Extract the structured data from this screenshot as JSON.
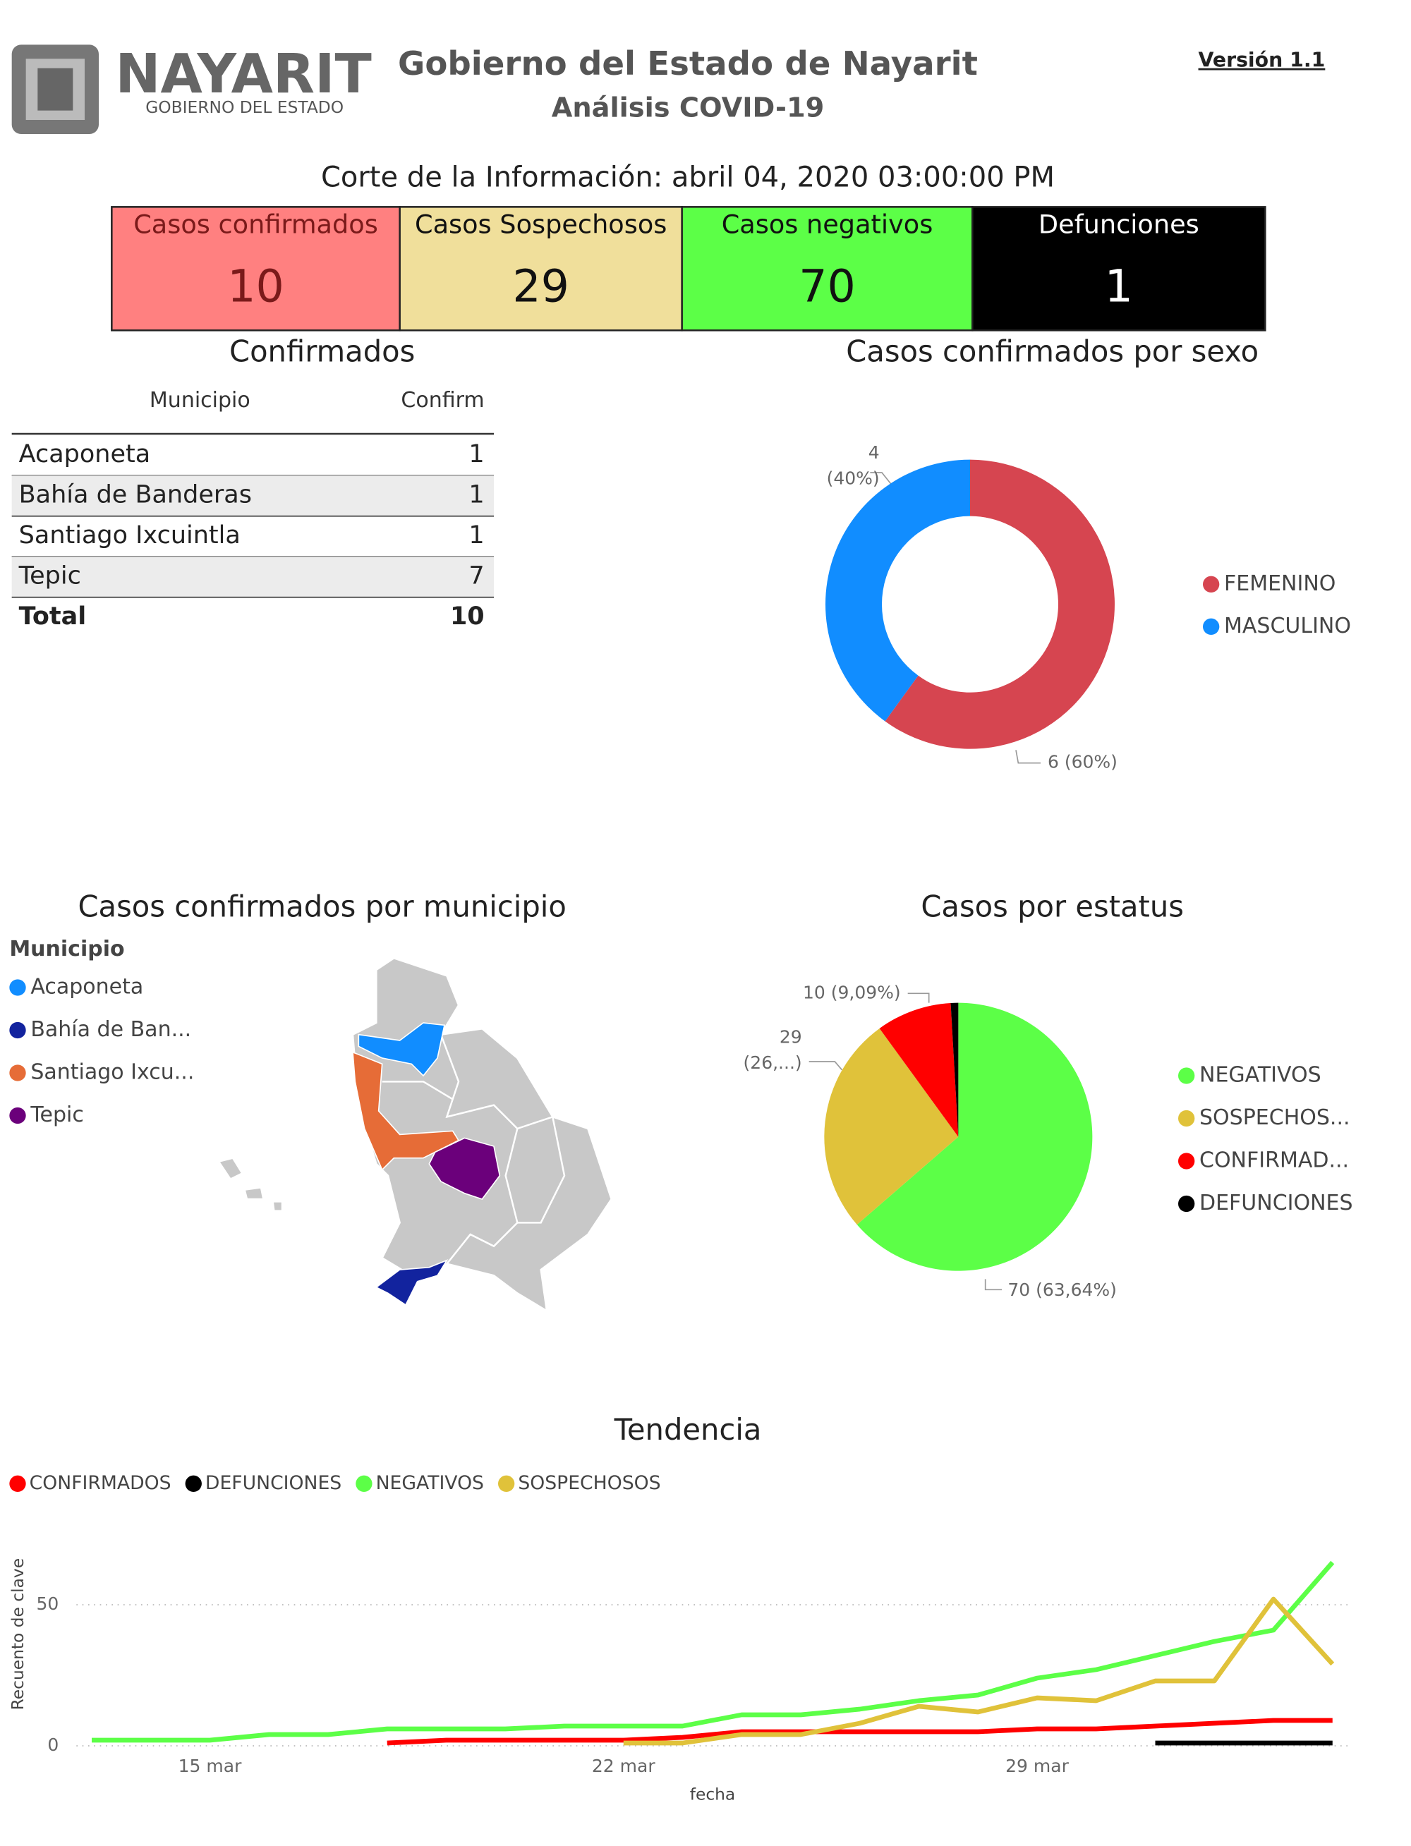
{
  "header": {
    "logo_text": "NAYARIT",
    "logo_sub": "GOBIERNO DEL ESTADO",
    "title": "Gobierno del Estado de Nayarit",
    "subtitle": "Análisis COVID-19",
    "version": "Versión 1.1",
    "corte": "Corte de la Información: abril 04, 2020 03:00:00 PM"
  },
  "cards": [
    {
      "label": "Casos confirmados",
      "value": 10,
      "bg": "#ff8080",
      "color": "#7a1a1a"
    },
    {
      "label": "Casos Sospechosos",
      "value": 29,
      "bg": "#f0df9b",
      "color": "#111111"
    },
    {
      "label": "Casos negativos",
      "value": 70,
      "bg": "#5cff47",
      "color": "#111111"
    },
    {
      "label": "Defunciones",
      "value": 1,
      "bg": "#000000",
      "color": "#ffffff"
    }
  ],
  "table": {
    "title": "Confirmados",
    "columns": [
      "Municipio",
      "Confirm"
    ],
    "rows": [
      [
        "Acaponeta",
        1
      ],
      [
        "Bahía de Banderas",
        1
      ],
      [
        "Santiago Ixcuintla",
        1
      ],
      [
        "Tepic",
        7
      ]
    ],
    "total": [
      "Total",
      10
    ]
  },
  "map": {
    "title": "Casos confirmados por municipio",
    "legend_title": "Municipio",
    "items": [
      {
        "name": "Acaponeta",
        "color": "#118dff"
      },
      {
        "name": "Bahía de Ban...",
        "color": "#12239e"
      },
      {
        "name": "Santiago Ixcu...",
        "color": "#e66c37"
      },
      {
        "name": "Tepic",
        "color": "#6b007b"
      }
    ]
  },
  "chart_data": [
    {
      "type": "donut",
      "title": "Casos confirmados por sexo",
      "categories": [
        "FEMENINO",
        "MASCULINO"
      ],
      "values": [
        6,
        4
      ],
      "value_labels": [
        "6 (60%)",
        "4 (40%)"
      ],
      "colors": [
        "#d64550",
        "#118dff"
      ]
    },
    {
      "type": "pie",
      "title": "Casos por estatus",
      "categories": [
        "NEGATIVOS",
        "SOSPECHOS...",
        "CONFIRMAD...",
        "DEFUNCIONES"
      ],
      "values": [
        70,
        29,
        10,
        1
      ],
      "value_labels": [
        "70 (63,64%)",
        "29 (26,...)",
        "10 (9,09%)",
        null
      ],
      "colors": [
        "#5cff47",
        "#e0c23a",
        "#ff0000",
        "#000000"
      ]
    },
    {
      "type": "line",
      "title": "Tendencia",
      "xlabel": "fecha",
      "ylabel": "Recuento de clave",
      "x": [
        "13 mar",
        "14 mar",
        "15 mar",
        "16 mar",
        "17 mar",
        "18 mar",
        "19 mar",
        "20 mar",
        "21 mar",
        "22 mar",
        "23 mar",
        "24 mar",
        "25 mar",
        "26 mar",
        "27 mar",
        "28 mar",
        "29 mar",
        "30 mar",
        "31 mar",
        "1 abr",
        "2 abr",
        "3 abr"
      ],
      "xticks": [
        "15 mar",
        "22 mar",
        "29 mar"
      ],
      "ylim": [
        0,
        70
      ],
      "yticks": [
        0,
        50
      ],
      "grid": true,
      "series": [
        {
          "name": "CONFIRMADOS",
          "color": "#ff0000",
          "values": [
            null,
            null,
            null,
            null,
            null,
            1,
            2,
            2,
            2,
            2,
            3,
            5,
            5,
            5,
            5,
            5,
            6,
            6,
            7,
            8,
            9,
            9
          ]
        },
        {
          "name": "DEFUNCIONES",
          "color": "#000000",
          "values": [
            null,
            null,
            null,
            null,
            null,
            null,
            null,
            null,
            null,
            null,
            null,
            null,
            null,
            null,
            null,
            null,
            null,
            null,
            1,
            1,
            1,
            1
          ]
        },
        {
          "name": "NEGATIVOS",
          "color": "#5cff47",
          "values": [
            2,
            2,
            2,
            4,
            4,
            6,
            6,
            6,
            7,
            7,
            7,
            11,
            11,
            13,
            16,
            18,
            24,
            27,
            32,
            37,
            41,
            65
          ]
        },
        {
          "name": "SOSPECHOSOS",
          "color": "#e0c23a",
          "values": [
            null,
            null,
            null,
            null,
            null,
            null,
            null,
            null,
            null,
            1,
            1,
            4,
            4,
            8,
            14,
            12,
            17,
            16,
            23,
            23,
            52,
            29
          ]
        }
      ]
    }
  ]
}
